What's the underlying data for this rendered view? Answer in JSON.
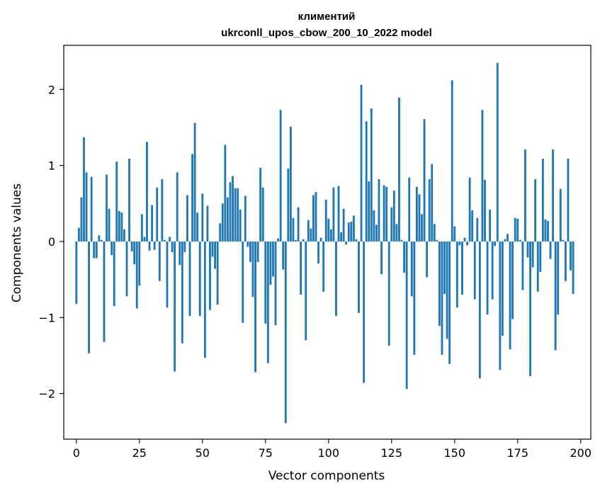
{
  "chart_data": {
    "type": "bar",
    "title": "климентий",
    "subtitle": "ukrconll_upos_cbow_200_10_2022 model",
    "xlabel": "Vector components",
    "ylabel": "Components values",
    "xlim": [
      -5,
      204
    ],
    "ylim": [
      -2.6,
      2.58
    ],
    "xticks": [
      0,
      25,
      50,
      75,
      100,
      125,
      150,
      175,
      200
    ],
    "yticks": [
      -2,
      -1,
      0,
      1,
      2
    ],
    "grid": false,
    "legend": "none",
    "bar_color": "#1f77b4",
    "values": [
      -0.82,
      0.18,
      0.58,
      1.37,
      0.91,
      -1.47,
      0.85,
      -0.22,
      -0.22,
      0.08,
      0.02,
      -1.32,
      0.88,
      0.43,
      -0.18,
      -0.85,
      1.05,
      0.4,
      0.38,
      0.16,
      -0.72,
      1.09,
      -0.13,
      -0.3,
      -0.88,
      -0.58,
      0.36,
      0.06,
      1.31,
      -0.12,
      0.48,
      -0.11,
      0.71,
      -0.52,
      0.82,
      0.02,
      -0.87,
      0.06,
      -0.14,
      -1.71,
      0.91,
      -0.31,
      -1.34,
      -0.14,
      0.61,
      -0.98,
      1.15,
      1.56,
      0.38,
      -0.98,
      0.63,
      -1.53,
      0.47,
      -0.9,
      -0.2,
      -0.36,
      -0.83,
      0.24,
      0.5,
      1.27,
      0.58,
      0.78,
      0.86,
      0.7,
      0.7,
      0.42,
      -1.07,
      0.6,
      -0.07,
      -0.27,
      -0.73,
      -1.72,
      -0.27,
      0.97,
      0.71,
      -1.08,
      -1.6,
      -0.57,
      -0.46,
      -1.1,
      0.04,
      1.73,
      -0.37,
      -2.39,
      0.96,
      1.51,
      0.31,
      0.02,
      0.45,
      -0.7,
      0.03,
      -1.3,
      0.28,
      0.17,
      0.61,
      0.65,
      -0.29,
      0.05,
      -0.66,
      0.55,
      0.3,
      0.16,
      0.71,
      -0.98,
      0.73,
      0.12,
      0.43,
      -0.04,
      0.25,
      0.26,
      0.34,
      0.03,
      -0.94,
      2.06,
      -1.86,
      1.58,
      0.79,
      1.75,
      0.41,
      0.22,
      0.82,
      -0.43,
      0.74,
      0.72,
      -1.37,
      0.45,
      0.67,
      0.23,
      1.89,
      0.02,
      -0.41,
      -1.94,
      0.84,
      -0.72,
      -1.49,
      0.72,
      0.62,
      0.36,
      1.61,
      -0.47,
      0.82,
      1.02,
      0.23,
      0.02,
      -1.11,
      -1.49,
      -0.69,
      -1.28,
      -1.61,
      2.12,
      0.2,
      -0.87,
      -0.05,
      -0.7,
      0.05,
      -0.05,
      0.84,
      0.41,
      -0.76,
      0.31,
      -1.8,
      1.73,
      0.81,
      -0.96,
      0.42,
      -0.76,
      -0.06,
      2.35,
      -1.69,
      -1.24,
      0.03,
      0.1,
      -1.42,
      -1.02,
      0.31,
      0.3,
      0.02,
      -0.64,
      1.21,
      -0.21,
      -1.77,
      -0.34,
      0.82,
      -0.66,
      -0.4,
      1.09,
      0.29,
      0.27,
      -0.23,
      1.21,
      -1.43,
      -0.96,
      0.69,
      0.02,
      -0.52,
      1.09,
      -0.38,
      -0.69
    ]
  }
}
